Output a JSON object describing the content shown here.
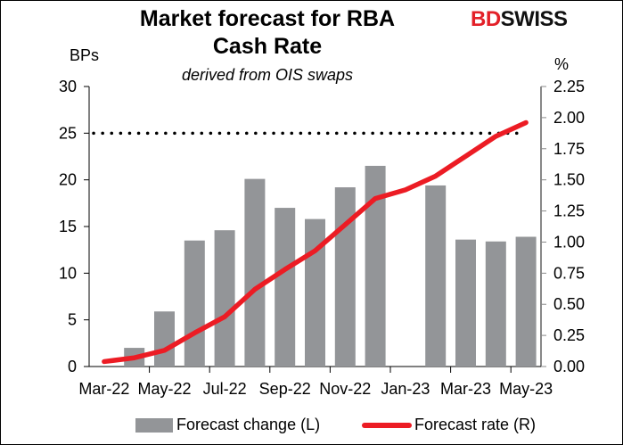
{
  "chart_data": {
    "type": "bar+line",
    "title": "Market forecast for RBA Cash Rate",
    "subtitle": "derived from OIS swaps",
    "left_axis_label": "BPs",
    "right_axis_label": "%",
    "categories": [
      "Mar-22",
      "Apr-22",
      "May-22",
      "Jun-22",
      "Jul-22",
      "Aug-22",
      "Sep-22",
      "Oct-22",
      "Nov-22",
      "Dec-22",
      "Jan-23",
      "Feb-23",
      "Mar-23",
      "Apr-23",
      "May-23"
    ],
    "x_tick_labels": [
      "Mar-22",
      "May-22",
      "Jul-22",
      "Sep-22",
      "Nov-22",
      "Jan-23",
      "Mar-23",
      "May-23"
    ],
    "left_ylim": [
      0,
      30
    ],
    "left_ticks": [
      0,
      5,
      10,
      15,
      20,
      25,
      30
    ],
    "right_ylim": [
      0,
      2.25
    ],
    "right_ticks": [
      "0.00",
      "0.25",
      "0.50",
      "0.75",
      "1.00",
      "1.25",
      "1.50",
      "1.75",
      "2.00",
      "2.25"
    ],
    "series": [
      {
        "name": "Forecast change (L)",
        "type": "bar",
        "axis": "left",
        "color": "#939598",
        "values": [
          null,
          2.0,
          5.9,
          13.5,
          14.6,
          20.1,
          17.0,
          15.8,
          19.2,
          21.5,
          null,
          19.4,
          13.6,
          13.4,
          13.9
        ]
      },
      {
        "name": "Forecast rate (R)",
        "type": "line",
        "axis": "right",
        "color": "#ec1c24",
        "values": [
          0.04,
          0.07,
          0.13,
          0.27,
          0.4,
          0.62,
          0.78,
          0.93,
          1.14,
          1.35,
          1.42,
          1.53,
          1.69,
          1.85,
          1.96
        ]
      }
    ],
    "reference_line": {
      "axis": "left",
      "value": 25,
      "style": "dotted",
      "color": "#000000"
    },
    "grid": false,
    "legend": "bottom"
  },
  "logo": {
    "part1": "BD",
    "part2": "SWISS"
  }
}
